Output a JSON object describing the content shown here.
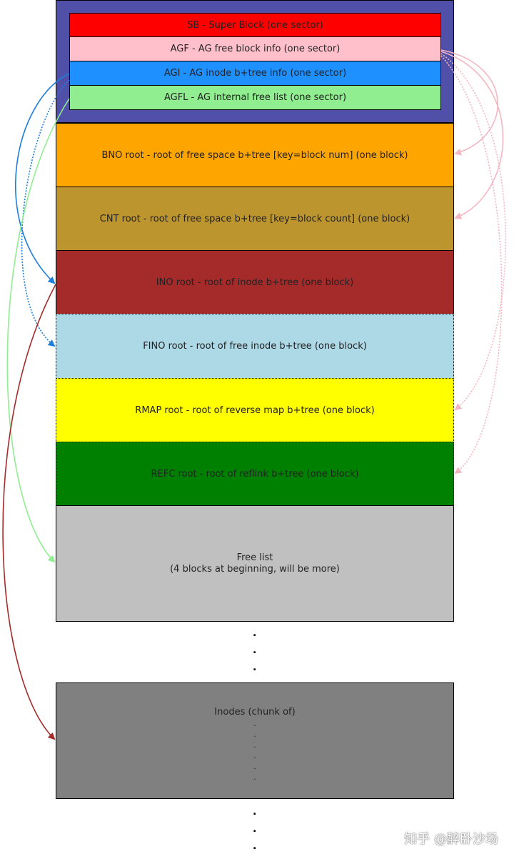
{
  "header_blocks": [
    {
      "label": "SB - Super Block (one sector)",
      "color": "#ff0000"
    },
    {
      "label": "AGF - AG free block info (one sector)",
      "color": "#ffc0cb"
    },
    {
      "label": "AGI - AG inode b+tree info (one sector)",
      "color": "#1e90ff"
    },
    {
      "label": "AGFL - AG internal free list (one sector)",
      "color": "#90ee90"
    }
  ],
  "header_frame_color": "#5050a8",
  "blocks": {
    "bno": {
      "label": "BNO root - root of free space b+tree [key=block num]  (one block)",
      "color": "#ffa500"
    },
    "cnt": {
      "label": "CNT root - root of free space b+tree [key=block count] (one block)",
      "color": "#bd952e"
    },
    "ino": {
      "label": "INO root - root of inode b+tree  (one block)",
      "color": "#a52a2a"
    },
    "fino": {
      "label": "FINO root - root of free inode b+tree  (one block)",
      "color": "#add8e6"
    },
    "rmap": {
      "label": "RMAP root - root of reverse map b+tree  (one block)",
      "color": "#ffff00"
    },
    "refc": {
      "label": "REFC root - root of reflink b+tree  (one block)",
      "color": "#008000"
    },
    "freelist": {
      "line1": "Free list",
      "line2": "(4 blocks at beginning, will be more)",
      "color": "#c0c0c0"
    },
    "inodes": {
      "label": "Inodes (chunk of)",
      "color": "#808080"
    }
  },
  "continuation_dots": ".\n.\n.",
  "inner_dots": ".\n.\n.\n.\n.\n.",
  "watermark": "知乎 @醉卧沙场"
}
